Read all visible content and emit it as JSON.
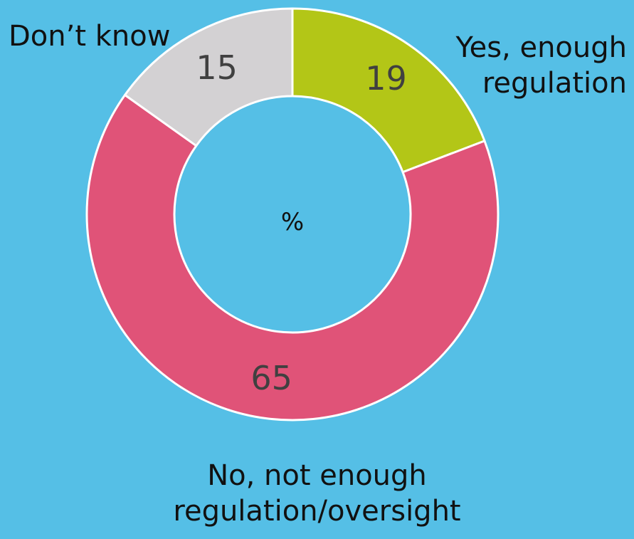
{
  "chart_data": {
    "type": "pie",
    "style": "donut",
    "center_label": "%",
    "slices": [
      {
        "label": "Yes, enough regulation",
        "value": 19,
        "color": "#b3c617"
      },
      {
        "label": "No, not enough regulation/oversight",
        "value": 65,
        "color": "#e05378"
      },
      {
        "label": "Don’t know",
        "value": 15,
        "color": "#d3d1d3"
      }
    ]
  },
  "labels": {
    "dont_know": "Don’t know",
    "yes_line1": "Yes, enough",
    "yes_line2": "regulation",
    "no_line1": "No, not enough",
    "no_line2": "regulation/oversight"
  },
  "colors": {
    "background": "#55bfe6",
    "slice_border": "#ffffff"
  }
}
